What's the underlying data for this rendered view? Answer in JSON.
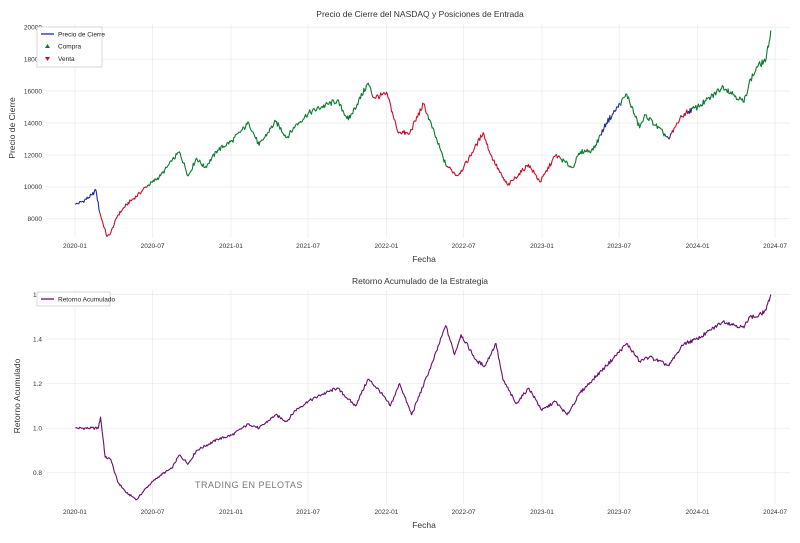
{
  "watermark": "TRADING EN PELOTAS",
  "colors": {
    "price": "#1f2aa0",
    "buy": "#0b7a2e",
    "sell": "#c8102e",
    "returns": "#6a0f6e",
    "grid": "#e6e6e6"
  },
  "chart_data": [
    {
      "type": "line",
      "title": "Precio de Cierre del NASDAQ y Posiciones de Entrada",
      "xlabel": "Fecha",
      "ylabel": "Precio de Cierre",
      "x_ticks": [
        "2020-01",
        "2020-07",
        "2021-01",
        "2021-07",
        "2022-01",
        "2022-07",
        "2023-01",
        "2023-07",
        "2024-01",
        "2024-07"
      ],
      "y_ticks": [
        8000,
        10000,
        12000,
        14000,
        16000,
        18000,
        20000
      ],
      "xlim": [
        "2019-10-25",
        "2024-08-05"
      ],
      "ylim": [
        6800,
        20200
      ],
      "grid": true,
      "legend": {
        "position": "top-left",
        "entries": [
          {
            "label": "Precio de Cierre",
            "marker": "line",
            "color": "#1f2aa0"
          },
          {
            "label": "Compra",
            "marker": "triangle-up",
            "color": "#0b7a2e"
          },
          {
            "label": "Venta",
            "marker": "triangle-down",
            "color": "#c8102e"
          }
        ]
      },
      "series": [
        {
          "name": "Precio de Cierre",
          "x": [
            "2020-01-02",
            "2020-01-20",
            "2020-02-10",
            "2020-02-19",
            "2020-02-28",
            "2020-03-16",
            "2020-03-23",
            "2020-04-10",
            "2020-05-01",
            "2020-06-01",
            "2020-06-15",
            "2020-07-01",
            "2020-07-20",
            "2020-08-15",
            "2020-09-02",
            "2020-09-23",
            "2020-10-12",
            "2020-11-01",
            "2020-12-01",
            "2021-01-04",
            "2021-02-12",
            "2021-03-08",
            "2021-04-16",
            "2021-05-12",
            "2021-06-01",
            "2021-07-01",
            "2021-08-01",
            "2021-09-07",
            "2021-10-04",
            "2021-11-19",
            "2021-12-01",
            "2022-01-03",
            "2022-01-27",
            "2022-02-23",
            "2022-03-29",
            "2022-05-20",
            "2022-06-16",
            "2022-07-01",
            "2022-08-16",
            "2022-09-01",
            "2022-09-30",
            "2022-10-13",
            "2022-11-30",
            "2022-12-28",
            "2023-02-02",
            "2023-03-13",
            "2023-04-01",
            "2023-05-01",
            "2023-06-01",
            "2023-07-19",
            "2023-08-18",
            "2023-09-01",
            "2023-10-26",
            "2023-11-15",
            "2023-12-01",
            "2024-01-01",
            "2024-02-01",
            "2024-03-01",
            "2024-04-19",
            "2024-05-01",
            "2024-05-20",
            "2024-06-10",
            "2024-06-21"
          ],
          "y": [
            8900,
            9100,
            9500,
            9800,
            8400,
            6900,
            7000,
            8200,
            8900,
            9600,
            10000,
            10300,
            10700,
            11600,
            12200,
            10700,
            11800,
            11200,
            12300,
            12900,
            14000,
            12600,
            14100,
            13100,
            13800,
            14600,
            15000,
            15400,
            14200,
            16500,
            15600,
            15800,
            13500,
            13300,
            15200,
            11400,
            10700,
            11200,
            13400,
            12100,
            10600,
            10100,
            11400,
            10300,
            12000,
            11200,
            12200,
            12300,
            14000,
            15800,
            13700,
            14500,
            13000,
            14000,
            14600,
            15000,
            15600,
            16300,
            15300,
            16500,
            17500,
            18000,
            19800
          ]
        }
      ],
      "segments": [
        {
          "label": "Venta",
          "from": "2020-02-28",
          "to": "2020-06-15"
        },
        {
          "label": "Compra",
          "from": "2020-06-15",
          "to": "2021-11-25"
        },
        {
          "label": "Venta",
          "from": "2021-11-25",
          "to": "2022-04-05"
        },
        {
          "label": "Compra",
          "from": "2022-04-05",
          "to": "2022-05-20"
        },
        {
          "label": "Venta",
          "from": "2022-05-20",
          "to": "2023-02-10"
        },
        {
          "label": "Compra",
          "from": "2023-02-10",
          "to": "2023-05-15"
        },
        {
          "label": "Compra",
          "from": "2023-07-01",
          "to": "2023-10-20"
        },
        {
          "label": "Venta",
          "from": "2023-11-01",
          "to": "2023-12-10"
        },
        {
          "label": "Compra",
          "from": "2023-12-20",
          "to": "2024-06-21"
        }
      ]
    },
    {
      "type": "line",
      "title": "Retorno Acumulado de la Estrategia",
      "xlabel": "Fecha",
      "ylabel": "Retorno Acumulado",
      "x_ticks": [
        "2020-01",
        "2020-07",
        "2021-01",
        "2021-07",
        "2022-01",
        "2022-07",
        "2023-01",
        "2023-07",
        "2024-01",
        "2024-07"
      ],
      "y_ticks": [
        0.8,
        1.0,
        1.2,
        1.4,
        1.6
      ],
      "xlim": [
        "2019-10-25",
        "2024-08-05"
      ],
      "ylim": [
        0.66,
        1.62
      ],
      "grid": true,
      "legend": {
        "position": "top-left",
        "entries": [
          {
            "label": "Retorno Acumulado",
            "marker": "line",
            "color": "#6a0f6e"
          }
        ]
      },
      "series": [
        {
          "name": "Retorno Acumulado",
          "x": [
            "2020-01-02",
            "2020-02-25",
            "2020-03-01",
            "2020-03-12",
            "2020-03-25",
            "2020-04-10",
            "2020-05-01",
            "2020-05-25",
            "2020-06-15",
            "2020-07-01",
            "2020-07-20",
            "2020-08-15",
            "2020-09-02",
            "2020-09-23",
            "2020-10-12",
            "2020-11-01",
            "2020-12-01",
            "2021-01-04",
            "2021-02-12",
            "2021-03-08",
            "2021-04-16",
            "2021-05-12",
            "2021-06-01",
            "2021-07-01",
            "2021-08-01",
            "2021-09-07",
            "2021-10-04",
            "2021-10-20",
            "2021-11-19",
            "2021-12-15",
            "2022-01-10",
            "2022-02-01",
            "2022-03-01",
            "2022-04-20",
            "2022-05-20",
            "2022-06-10",
            "2022-06-25",
            "2022-08-01",
            "2022-08-20",
            "2022-09-15",
            "2022-10-01",
            "2022-11-01",
            "2022-12-01",
            "2023-01-01",
            "2023-02-01",
            "2023-03-01",
            "2023-04-01",
            "2023-05-01",
            "2023-06-01",
            "2023-07-19",
            "2023-08-18",
            "2023-09-10",
            "2023-10-26",
            "2023-11-15",
            "2023-12-01",
            "2024-01-01",
            "2024-02-01",
            "2024-03-01",
            "2024-04-19",
            "2024-05-01",
            "2024-05-20",
            "2024-06-10",
            "2024-06-21"
          ],
          "y": [
            1.0,
            1.0,
            1.05,
            0.87,
            0.86,
            0.76,
            0.71,
            0.68,
            0.73,
            0.76,
            0.79,
            0.82,
            0.88,
            0.84,
            0.9,
            0.92,
            0.95,
            0.97,
            1.02,
            1.0,
            1.06,
            1.03,
            1.08,
            1.12,
            1.15,
            1.18,
            1.13,
            1.1,
            1.22,
            1.17,
            1.1,
            1.2,
            1.06,
            1.3,
            1.46,
            1.33,
            1.42,
            1.3,
            1.28,
            1.38,
            1.22,
            1.11,
            1.18,
            1.08,
            1.12,
            1.06,
            1.16,
            1.22,
            1.28,
            1.38,
            1.3,
            1.32,
            1.28,
            1.34,
            1.38,
            1.4,
            1.44,
            1.48,
            1.45,
            1.5,
            1.5,
            1.53,
            1.6
          ]
        }
      ]
    }
  ]
}
